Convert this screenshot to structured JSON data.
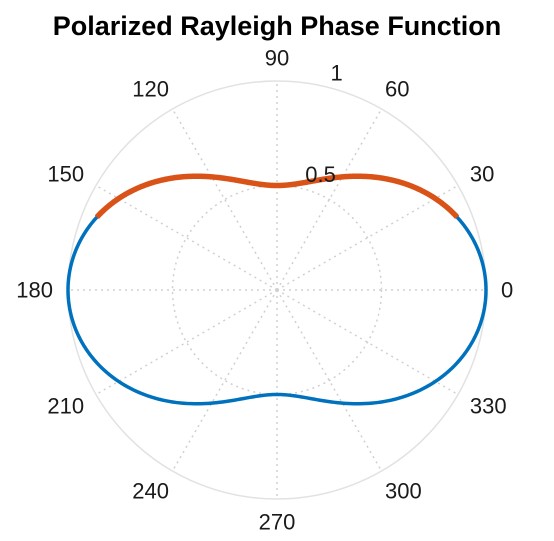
{
  "chart_data": {
    "type": "line",
    "subtype": "polar",
    "title": "Polarized Rayleigh Phase Function",
    "theta_unit": "degrees",
    "theta_ticks": [
      0,
      30,
      60,
      90,
      120,
      150,
      180,
      210,
      240,
      270,
      300,
      330
    ],
    "theta_tick_labels": [
      "0",
      "30",
      "60",
      "90",
      "120",
      "150",
      "180",
      "210",
      "240",
      "270",
      "300",
      "330"
    ],
    "r_ticks": [
      0.5,
      1
    ],
    "r_tick_labels": [
      "0.5",
      "1"
    ],
    "rlim": [
      0,
      1
    ],
    "grid": true,
    "series": [
      {
        "color": "#0072BD",
        "function": "(1 + cos^2(theta)) / 2",
        "theta_range": [
          0,
          360
        ],
        "theta": [
          0,
          30,
          60,
          90,
          120,
          150,
          180,
          210,
          240,
          270,
          300,
          330,
          360
        ],
        "r": [
          1.0,
          0.875,
          0.625,
          0.5,
          0.625,
          0.875,
          1.0,
          0.875,
          0.625,
          0.5,
          0.625,
          0.875,
          1.0
        ]
      },
      {
        "color": "#D95319",
        "function": "(1 + cos^2(theta)) / 2",
        "theta_range": [
          22,
          158
        ],
        "theta": [
          22,
          30,
          60,
          90,
          120,
          150,
          158
        ],
        "r": [
          0.93,
          0.875,
          0.625,
          0.5,
          0.625,
          0.875,
          0.93
        ]
      }
    ]
  }
}
